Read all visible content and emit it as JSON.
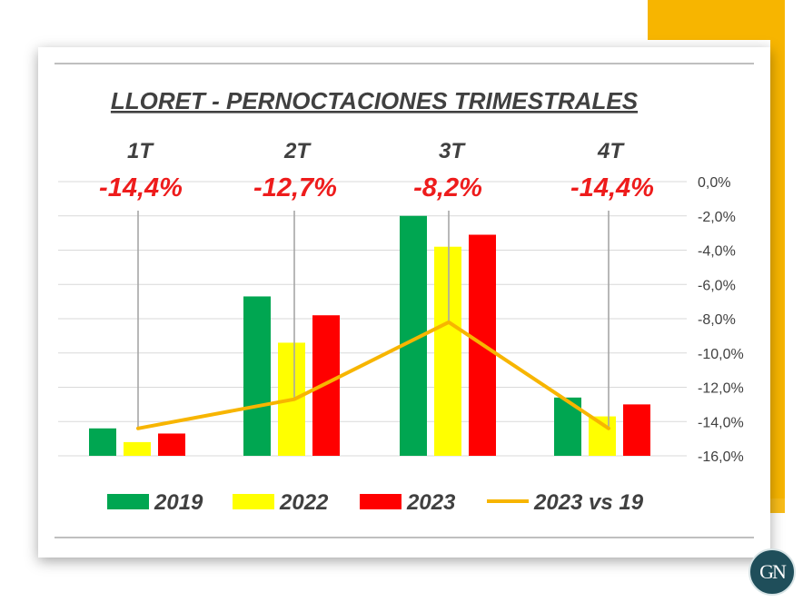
{
  "logo_text": "GN",
  "chart_data": {
    "type": "bar",
    "title": "LLORET - PERNOCTACIONES TRIMESTRALES",
    "categories": [
      "1T",
      "2T",
      "3T",
      "4T"
    ],
    "series": [
      {
        "name": "2019",
        "color": "#00a651",
        "values": [
          -14.4,
          -6.7,
          -2.0,
          -12.6
        ]
      },
      {
        "name": "2022",
        "color": "#ffff00",
        "values": [
          -15.2,
          -9.4,
          -3.8,
          -13.7
        ]
      },
      {
        "name": "2023",
        "color": "#ff0000",
        "values": [
          -14.7,
          -7.8,
          -3.1,
          -13.0
        ]
      }
    ],
    "line_series": {
      "name": "2023 vs 19",
      "color": "#f7b500",
      "values": [
        -14.4,
        -12.7,
        -8.2,
        -14.4
      ]
    },
    "annotations": [
      "-14,4%",
      "-12,7%",
      "-8,2%",
      "-14,4%"
    ],
    "y_ticks": [
      "0,0%",
      "-2,0%",
      "-4,0%",
      "-6,0%",
      "-8,0%",
      "-10,0%",
      "-12,0%",
      "-14,0%",
      "-16,0%"
    ],
    "ylim": [
      -16,
      0
    ],
    "legend_position": "bottom",
    "grid": true
  }
}
